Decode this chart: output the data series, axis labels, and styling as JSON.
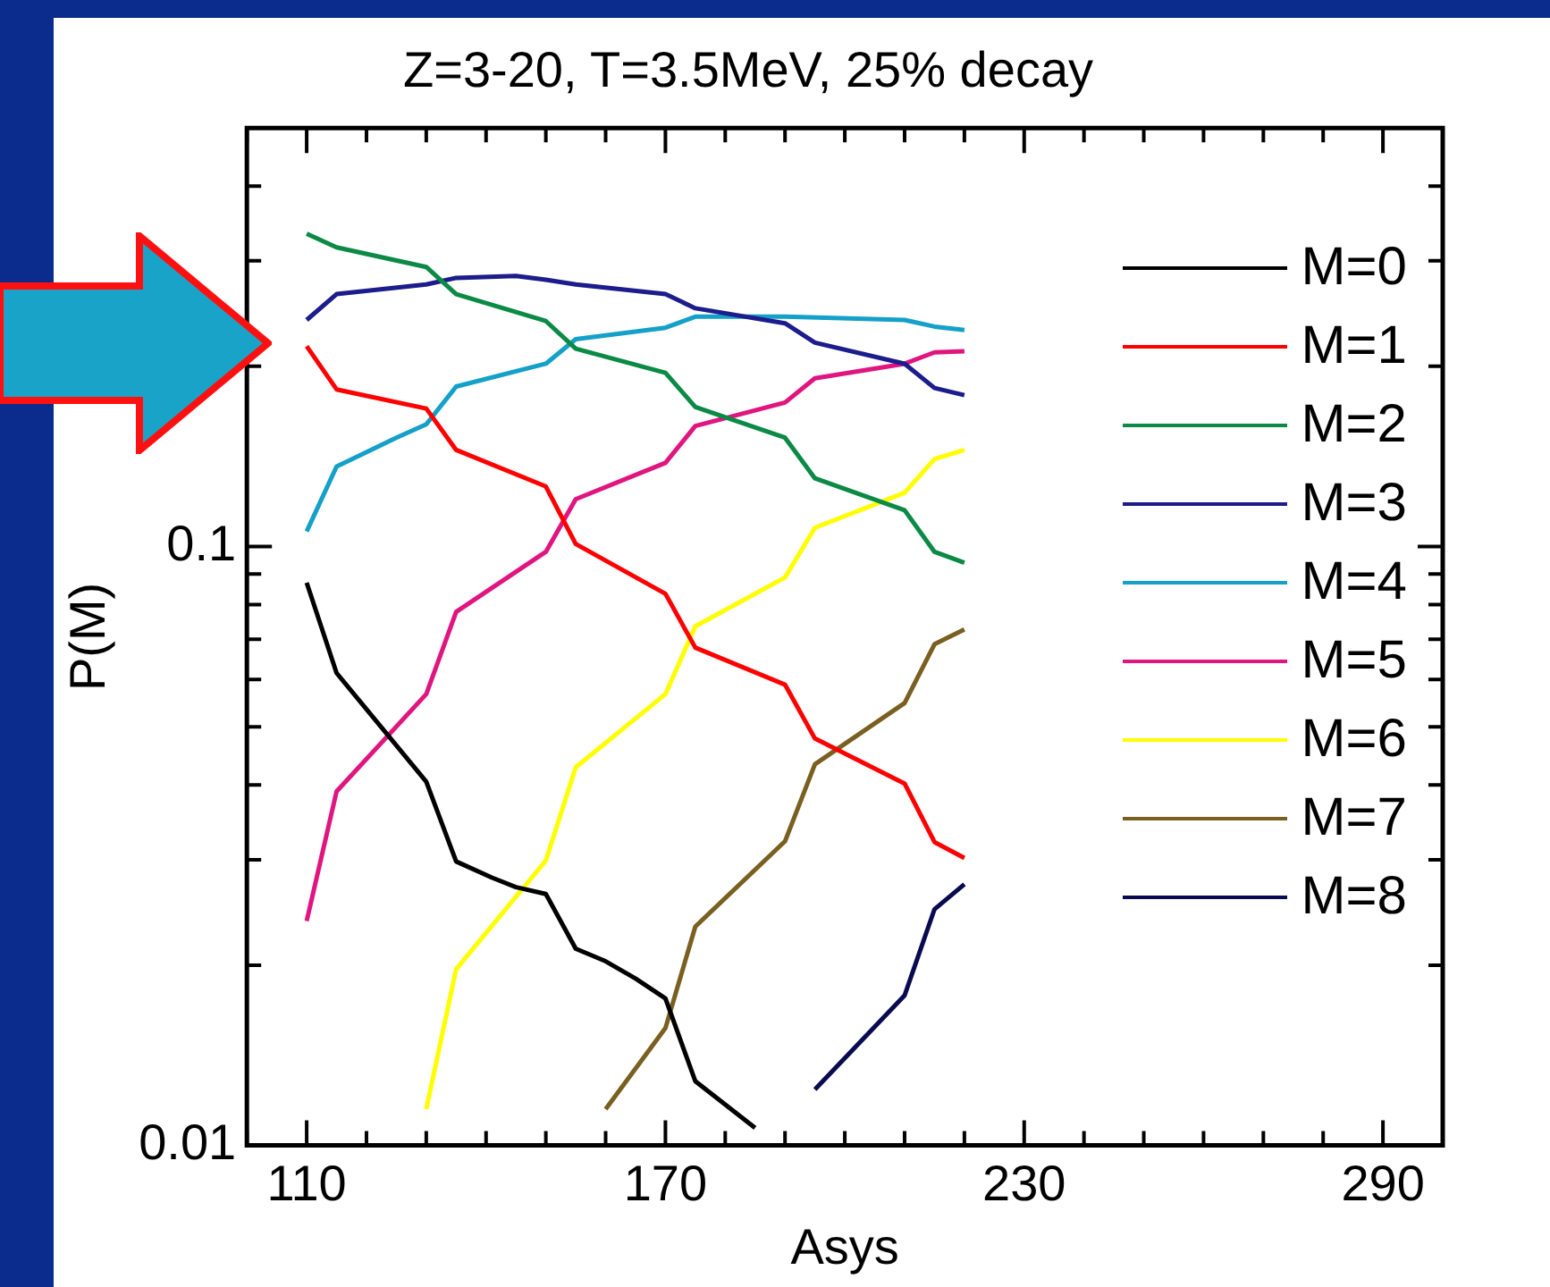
{
  "chart_data": {
    "type": "line",
    "title": "Z=3-20, T=3.5MeV, 25% decay",
    "xlabel": "Asys",
    "ylabel": "P(M)",
    "log": "y",
    "grid": false,
    "legend": "right",
    "marker": "none",
    "line_style": "solid",
    "xlim": [
      100,
      300
    ],
    "xticks": [
      {
        "value": 100,
        "label": null
      },
      110,
      {
        "value": 120,
        "label": null
      },
      {
        "value": 130,
        "label": null
      },
      {
        "value": 140,
        "label": null
      },
      {
        "value": 150,
        "label": null
      },
      {
        "value": 160,
        "label": null
      },
      170,
      {
        "value": 180,
        "label": null
      },
      {
        "value": 190,
        "label": null
      },
      {
        "value": 200,
        "label": null
      },
      {
        "value": 210,
        "label": null
      },
      {
        "value": 220,
        "label": null
      },
      230,
      {
        "value": 240,
        "label": null
      },
      {
        "value": 250,
        "label": null
      },
      {
        "value": 260,
        "label": null
      },
      {
        "value": 270,
        "label": null
      },
      {
        "value": 280,
        "label": null
      },
      290
    ],
    "ylim": [
      0.01,
      0.5
    ],
    "yticks": [
      {
        "value": 0.01,
        "label": "0.01"
      },
      {
        "value": 0.02,
        "label": null
      },
      {
        "value": 0.03,
        "label": null
      },
      {
        "value": 0.04,
        "label": null
      },
      {
        "value": 0.05,
        "label": null
      },
      {
        "value": 0.06,
        "label": null
      },
      {
        "value": 0.07,
        "label": null
      },
      {
        "value": 0.08,
        "label": null
      },
      {
        "value": 0.09,
        "label": null
      },
      {
        "value": 0.1,
        "label": "0.1"
      },
      {
        "value": 0.2,
        "label": null
      },
      {
        "value": 0.3,
        "label": null
      },
      {
        "value": 0.4,
        "label": null
      }
    ],
    "series": [
      {
        "name": "M=0",
        "color": "#000000",
        "x": [
          110,
          115,
          130,
          135,
          141,
          145,
          150,
          155,
          160,
          165,
          170,
          175,
          185
        ],
        "values": [
          0.087,
          0.0615,
          0.0405,
          0.0298,
          0.028,
          0.027,
          0.0263,
          0.0213,
          0.0203,
          0.019,
          0.0176,
          0.0128,
          0.0107
        ]
      },
      {
        "name": "M=1",
        "color": "#ff0000",
        "x": [
          110,
          115,
          130,
          135,
          150,
          155,
          170,
          175,
          190,
          195,
          210,
          215,
          220
        ],
        "values": [
          0.216,
          0.183,
          0.17,
          0.145,
          0.126,
          0.101,
          0.0834,
          0.0678,
          0.0588,
          0.0478,
          0.0402,
          0.0321,
          0.0302
        ]
      },
      {
        "name": "M=2",
        "color": "#0a8a45",
        "x": [
          110,
          115,
          130,
          135,
          150,
          155,
          170,
          175,
          190,
          195,
          210,
          215,
          220
        ],
        "values": [
          0.333,
          0.316,
          0.293,
          0.264,
          0.238,
          0.214,
          0.195,
          0.171,
          0.152,
          0.13,
          0.115,
          0.098,
          0.094
        ]
      },
      {
        "name": "M=3",
        "color": "#1c1c8c",
        "x": [
          110,
          115,
          130,
          135,
          145,
          150,
          155,
          170,
          175,
          190,
          195,
          210,
          215,
          220
        ],
        "values": [
          0.239,
          0.264,
          0.274,
          0.281,
          0.283,
          0.279,
          0.274,
          0.264,
          0.25,
          0.236,
          0.219,
          0.202,
          0.184,
          0.179
        ]
      },
      {
        "name": "M=4",
        "color": "#14a0c8",
        "x": [
          110,
          115,
          125,
          130,
          135,
          150,
          155,
          170,
          175,
          190,
          210,
          215,
          220
        ],
        "values": [
          0.106,
          0.136,
          0.152,
          0.16,
          0.185,
          0.202,
          0.222,
          0.232,
          0.242,
          0.242,
          0.239,
          0.233,
          0.23
        ]
      },
      {
        "name": "M=5",
        "color": "#e0157f",
        "x": [
          110,
          115,
          130,
          135,
          150,
          155,
          170,
          175,
          190,
          195,
          210,
          215,
          220
        ],
        "values": [
          0.0237,
          0.039,
          0.0567,
          0.0778,
          0.098,
          0.12,
          0.138,
          0.159,
          0.174,
          0.191,
          0.202,
          0.211,
          0.212
        ]
      },
      {
        "name": "M=6",
        "color": "#ffff00",
        "x": [
          130,
          135,
          150,
          155,
          170,
          175,
          190,
          195,
          210,
          215,
          220
        ],
        "values": [
          0.0115,
          0.0197,
          0.0299,
          0.0428,
          0.0567,
          0.0736,
          0.0888,
          0.1075,
          0.123,
          0.14,
          0.145
        ]
      },
      {
        "name": "M=7",
        "color": "#7a6020",
        "x": [
          160,
          170,
          175,
          190,
          195,
          210,
          215,
          220
        ],
        "values": [
          0.0115,
          0.0157,
          0.0232,
          0.0322,
          0.0433,
          0.0548,
          0.0687,
          0.0727
        ]
      },
      {
        "name": "M=8",
        "color": "#0a0a50",
        "x": [
          195,
          210,
          215,
          220
        ],
        "values": [
          0.0124,
          0.0178,
          0.0248,
          0.0273
        ]
      }
    ]
  }
}
